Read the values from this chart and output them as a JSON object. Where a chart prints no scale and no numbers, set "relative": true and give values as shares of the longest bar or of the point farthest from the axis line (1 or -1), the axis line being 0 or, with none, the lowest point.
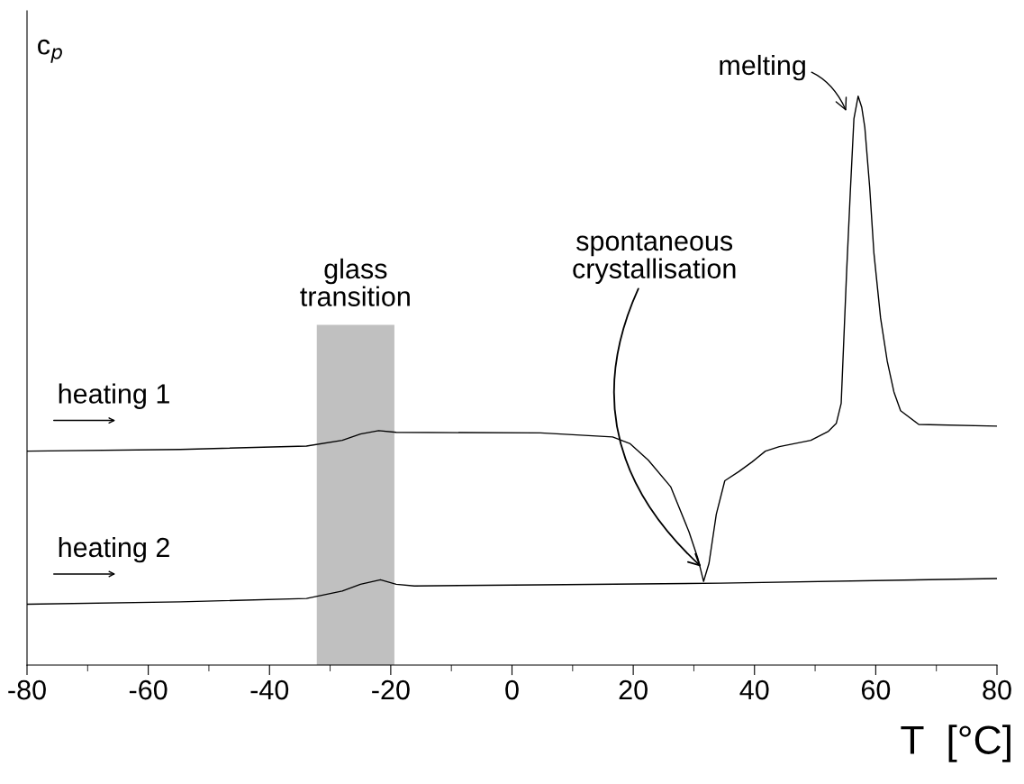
{
  "chart_data": {
    "type": "line",
    "relative": true,
    "xlabel": "T  [°C]",
    "ylabel": "c$_{p}$",
    "xlim": [
      -80,
      80
    ],
    "xticks": [
      -80,
      {
        "value": -70,
        "label": null
      },
      -60,
      {
        "value": -50,
        "label": null
      },
      -40,
      {
        "value": -30,
        "label": null
      },
      -20,
      {
        "value": -10,
        "label": null
      },
      0,
      {
        "value": 10,
        "label": null
      },
      20,
      {
        "value": 30,
        "label": null
      },
      40,
      {
        "value": 50,
        "label": null
      },
      60,
      {
        "value": 70,
        "label": null
      },
      80
    ],
    "tick_labels": "x",
    "grid": false,
    "legend": false,
    "marker": "none",
    "line_style": "solid",
    "series": [
      {
        "color": "#000000",
        "x": [
          -80,
          -54.7,
          -33.9,
          -28,
          -25,
          -22,
          -19.1,
          4.7,
          16.6,
          19.5,
          22.5,
          26.2,
          29.2,
          30.7,
          31.6,
          32.5,
          33.7,
          35.1,
          37.4,
          39.6,
          41.8,
          44.1,
          49.3,
          52.2,
          53.5,
          54.3,
          55.2,
          55.8,
          56.4,
          57.1,
          57.7,
          58.2,
          59.0,
          59.7,
          60.8,
          61.9,
          63.0,
          64.1,
          67.1,
          80
        ],
        "values": [
          0.376,
          0.379,
          0.385,
          0.395,
          0.406,
          0.412,
          0.409,
          0.408,
          0.401,
          0.389,
          0.36,
          0.313,
          0.234,
          0.186,
          0.147,
          0.179,
          0.265,
          0.324,
          0.34,
          0.357,
          0.376,
          0.384,
          0.395,
          0.411,
          0.425,
          0.46,
          0.692,
          0.83,
          0.96,
          1.0,
          0.98,
          0.945,
          0.84,
          0.724,
          0.61,
          0.534,
          0.48,
          0.447,
          0.423,
          0.42
        ]
      },
      {
        "color": "#000000",
        "x": [
          -80,
          -54.7,
          -33.9,
          -28,
          -25,
          -21.7,
          -19.1,
          -16.1,
          4.7,
          34.4,
          80
        ],
        "values": [
          0.107,
          0.111,
          0.117,
          0.13,
          0.142,
          0.15,
          0.142,
          0.139,
          0.141,
          0.144,
          0.152
        ]
      }
    ],
    "bands": [
      {
        "axis": "x",
        "from": -32.2,
        "to": -19.4,
        "label": "glass\ntransition",
        "color": "#c0c0c0"
      }
    ],
    "annotations": [
      "heating 1",
      "heating 2",
      {
        "text": "spontaneous\ncrystallisation",
        "x": 31.5,
        "y": 0.17
      },
      "melting"
    ]
  }
}
